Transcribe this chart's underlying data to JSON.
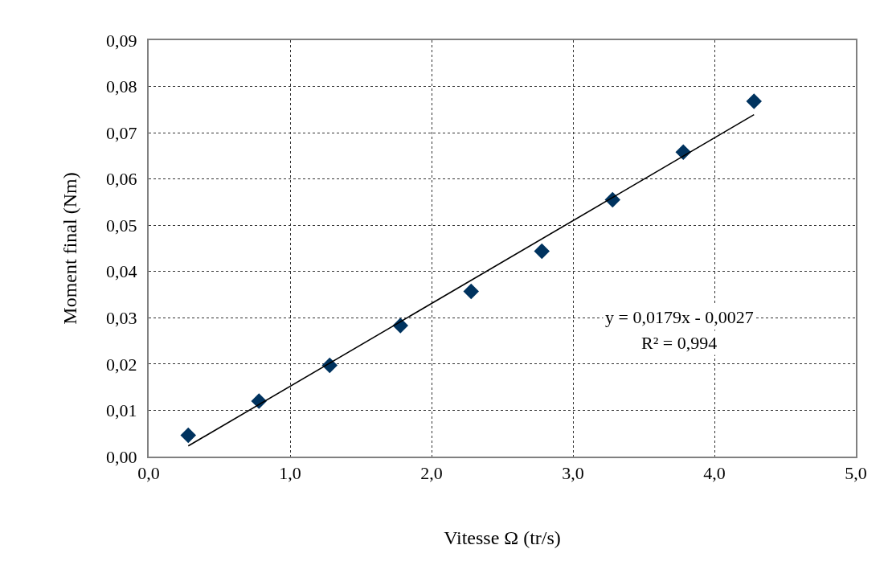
{
  "chart_data": {
    "type": "scatter",
    "xlabel": "Vitesse Ω (tr/s)",
    "ylabel": "Moment final (Nm)",
    "series": [
      {
        "marker": "diamond",
        "color": "#00335f",
        "x": [
          0.28,
          0.78,
          1.28,
          1.78,
          2.28,
          2.78,
          3.28,
          3.78,
          4.28
        ],
        "values": [
          0.0046,
          0.012,
          0.0197,
          0.0283,
          0.0357,
          0.0444,
          0.0555,
          0.0658,
          0.0768
        ]
      },
      {
        "type": "line",
        "marker": "none",
        "line_style": "solid",
        "color": "#000000",
        "x": [
          0.28,
          4.28
        ],
        "values": [
          0.0023,
          0.0739
        ]
      }
    ],
    "xlim": [
      0,
      5
    ],
    "xticks": [
      {
        "value": 0,
        "label": "0,0"
      },
      {
        "value": 1,
        "label": "1,0"
      },
      {
        "value": 2,
        "label": "2,0"
      },
      {
        "value": 3,
        "label": "3,0"
      },
      {
        "value": 4,
        "label": "4,0"
      },
      {
        "value": 5,
        "label": "5,0"
      }
    ],
    "ylim": [
      0,
      0.09
    ],
    "yticks": [
      {
        "value": 0,
        "label": "0,00"
      },
      {
        "value": 0.01,
        "label": "0,01"
      },
      {
        "value": 0.02,
        "label": "0,02"
      },
      {
        "value": 0.03,
        "label": "0,03"
      },
      {
        "value": 0.04,
        "label": "0,04"
      },
      {
        "value": 0.05,
        "label": "0,05"
      },
      {
        "value": 0.06,
        "label": "0,06"
      },
      {
        "value": 0.07,
        "label": "0,07"
      },
      {
        "value": 0.08,
        "label": "0,08"
      },
      {
        "value": 0.09,
        "label": "0,09"
      }
    ],
    "grid": true,
    "annotations": [
      "y = 0,0179x - 0,0027",
      "R² = 0,994"
    ]
  }
}
